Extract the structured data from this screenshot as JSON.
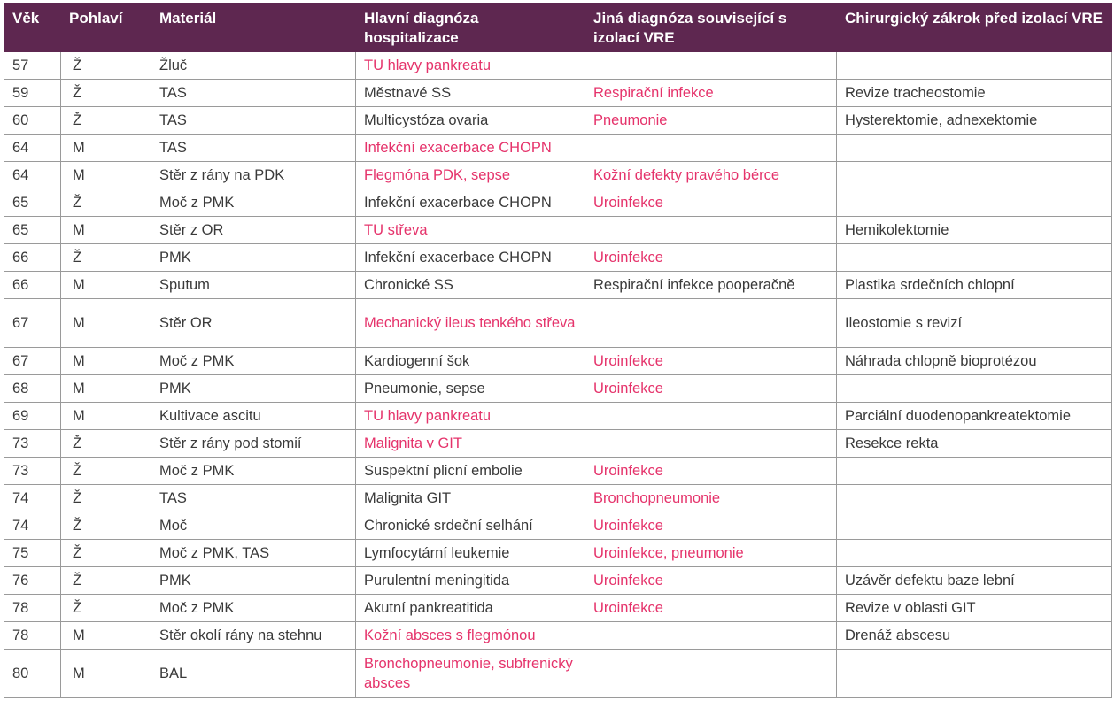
{
  "header": {
    "col1": "Věk",
    "col2": "Pohlaví",
    "col3": "Materiál",
    "col4": "Hlavní diagnóza hospitalizace",
    "col5": "Jiná diagnóza související s izolací VRE",
    "col6": "Chirurgický zákrok před izolací VRE"
  },
  "colors": {
    "header_bg": "#5e2750",
    "highlight": "#e5336b",
    "text": "#3a3a3a"
  },
  "rows": [
    {
      "age": "57",
      "sex": "Ž",
      "material": "Žluč",
      "main_dx": "TU hlavy pankreatu",
      "main_pink": true,
      "other_dx": "",
      "other_pink": false,
      "surgery": ""
    },
    {
      "age": "59",
      "sex": "Ž",
      "material": "TAS",
      "main_dx": "Městnavé SS",
      "main_pink": false,
      "other_dx": "Respirační infekce",
      "other_pink": true,
      "surgery": "Revize tracheostomie"
    },
    {
      "age": "60",
      "sex": "Ž",
      "material": "TAS",
      "main_dx": "Multicystóza ovaria",
      "main_pink": false,
      "other_dx": "Pneumonie",
      "other_pink": true,
      "surgery": "Hysterektomie, adnexektomie"
    },
    {
      "age": "64",
      "sex": "M",
      "material": "TAS",
      "main_dx": "Infekční exacerbace CHOPN",
      "main_pink": true,
      "other_dx": "",
      "other_pink": false,
      "surgery": ""
    },
    {
      "age": "64",
      "sex": "M",
      "material": "Stěr z rány na PDK",
      "main_dx": "Flegmóna PDK, sepse",
      "main_pink": true,
      "other_dx": "Kožní defekty pravého bérce",
      "other_pink": true,
      "surgery": ""
    },
    {
      "age": "65",
      "sex": "Ž",
      "material": "Moč z PMK",
      "main_dx": "Infekční exacerbace CHOPN",
      "main_pink": false,
      "other_dx": "Uroinfekce",
      "other_pink": true,
      "surgery": ""
    },
    {
      "age": "65",
      "sex": "M",
      "material": "Stěr z OR",
      "main_dx": "TU střeva",
      "main_pink": true,
      "other_dx": "",
      "other_pink": false,
      "surgery": "Hemikolektomie"
    },
    {
      "age": "66",
      "sex": "Ž",
      "material": "PMK",
      "main_dx": "Infekční exacerbace CHOPN",
      "main_pink": false,
      "other_dx": "Uroinfekce",
      "other_pink": true,
      "surgery": ""
    },
    {
      "age": "66",
      "sex": "M",
      "material": "Sputum",
      "main_dx": "Chronické SS",
      "main_pink": false,
      "other_dx": "Respirační infekce pooperačně",
      "other_pink": false,
      "surgery": "Plastika srdečních chlopní"
    },
    {
      "age": "67",
      "sex": "M",
      "material": "Stěr OR",
      "main_dx": "Mechanický ileus tenkého střeva",
      "main_pink": true,
      "other_dx": "",
      "other_pink": false,
      "surgery": "Ileostomie s revizí",
      "tall": true
    },
    {
      "age": "67",
      "sex": "M",
      "material": "Moč z PMK",
      "main_dx": "Kardiogenní šok",
      "main_pink": false,
      "other_dx": "Uroinfekce",
      "other_pink": true,
      "surgery": "Náhrada chlopně bioprotézou"
    },
    {
      "age": "68",
      "sex": "M",
      "material": "PMK",
      "main_dx": "Pneumonie, sepse",
      "main_pink": false,
      "other_dx": "Uroinfekce",
      "other_pink": true,
      "surgery": ""
    },
    {
      "age": "69",
      "sex": "M",
      "material": "Kultivace ascitu",
      "main_dx": "TU hlavy pankreatu",
      "main_pink": true,
      "other_dx": "",
      "other_pink": false,
      "surgery": "Parciální duodenopankreatektomie"
    },
    {
      "age": "73",
      "sex": "Ž",
      "material": "Stěr z rány pod stomií",
      "main_dx": "Malignita v GIT",
      "main_pink": true,
      "other_dx": "",
      "other_pink": false,
      "surgery": "Resekce rekta"
    },
    {
      "age": "73",
      "sex": "Ž",
      "material": "Moč z PMK",
      "main_dx": "Suspektní plicní embolie",
      "main_pink": false,
      "other_dx": "Uroinfekce",
      "other_pink": true,
      "surgery": ""
    },
    {
      "age": "74",
      "sex": "Ž",
      "material": "TAS",
      "main_dx": "Malignita GIT",
      "main_pink": false,
      "other_dx": "Bronchopneumonie",
      "other_pink": true,
      "surgery": ""
    },
    {
      "age": "74",
      "sex": "Ž",
      "material": "Moč",
      "main_dx": "Chronické srdeční selhání",
      "main_pink": false,
      "other_dx": "Uroinfekce",
      "other_pink": true,
      "surgery": ""
    },
    {
      "age": "75",
      "sex": "Ž",
      "material": "Moč z PMK, TAS",
      "main_dx": "Lymfocytární leukemie",
      "main_pink": false,
      "other_dx": "Uroinfekce, pneumonie",
      "other_pink": true,
      "surgery": ""
    },
    {
      "age": "76",
      "sex": "Ž",
      "material": "PMK",
      "main_dx": "Purulentní meningitida",
      "main_pink": false,
      "other_dx": "Uroinfekce",
      "other_pink": true,
      "surgery": "Uzávěr defektu baze lební"
    },
    {
      "age": "78",
      "sex": "Ž",
      "material": "Moč z PMK",
      "main_dx": "Akutní pankreatitida",
      "main_pink": false,
      "other_dx": "Uroinfekce",
      "other_pink": true,
      "surgery": "Revize v oblasti GIT"
    },
    {
      "age": "78",
      "sex": "M",
      "material": "Stěr okolí rány na stehnu",
      "main_dx": "Kožní absces s flegmónou",
      "main_pink": true,
      "other_dx": "",
      "other_pink": false,
      "surgery": "Drenáž abscesu"
    },
    {
      "age": "80",
      "sex": "M",
      "material": "BAL",
      "main_dx": "Bronchopneumonie, subfrenický absces",
      "main_pink": true,
      "other_dx": "",
      "other_pink": false,
      "surgery": "",
      "tall": true
    }
  ]
}
